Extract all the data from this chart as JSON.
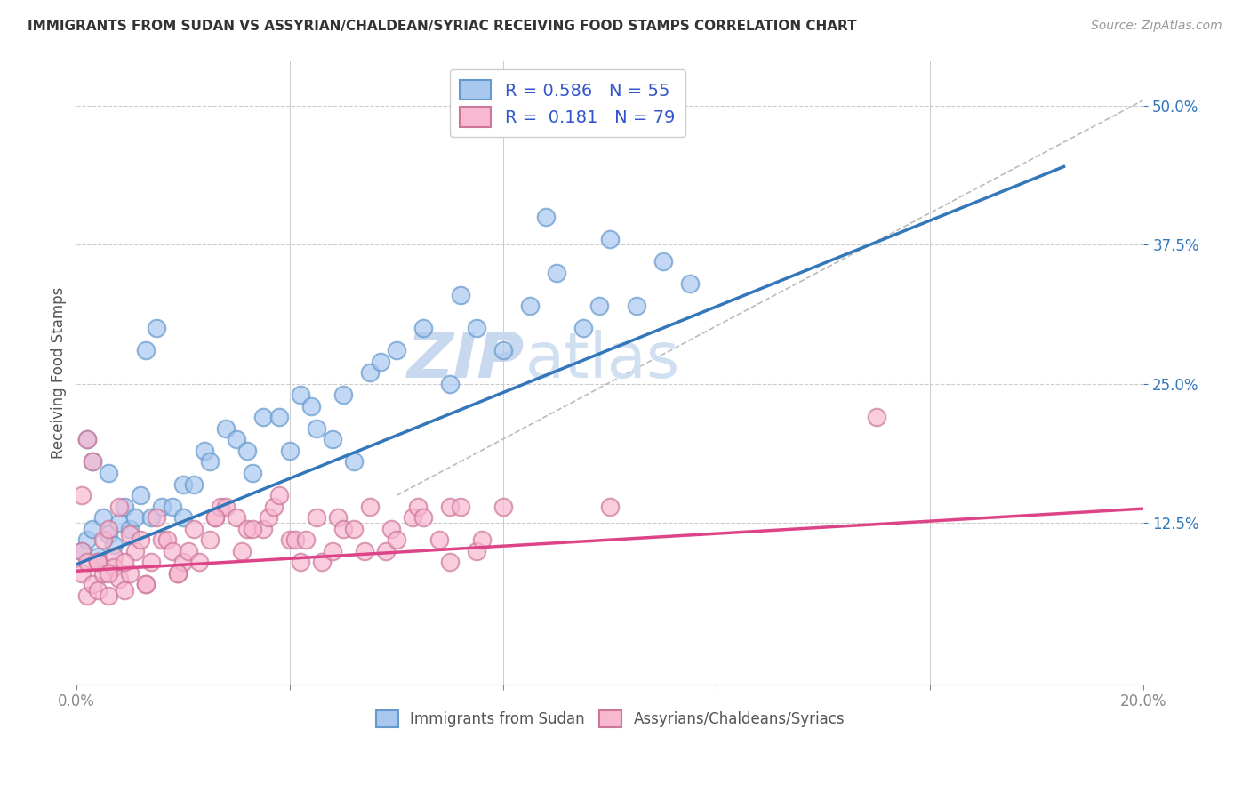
{
  "title": "IMMIGRANTS FROM SUDAN VS ASSYRIAN/CHALDEAN/SYRIAC RECEIVING FOOD STAMPS CORRELATION CHART",
  "source": "Source: ZipAtlas.com",
  "ylabel": "Receiving Food Stamps",
  "ytick_labels": [
    "12.5%",
    "25.0%",
    "37.5%",
    "50.0%"
  ],
  "ytick_values": [
    0.125,
    0.25,
    0.375,
    0.5
  ],
  "xmin": 0.0,
  "xmax": 0.2,
  "ymin": -0.02,
  "ymax": 0.54,
  "legend_entries": [
    {
      "label": "Immigrants from Sudan",
      "color": "#a8c4e8",
      "R": "0.586",
      "N": "55"
    },
    {
      "label": "Assyrians/Chaldeans/Syriacs",
      "color": "#f4a8c0",
      "R": "0.181",
      "N": "79"
    }
  ],
  "sudan_scatter_x": [
    0.001,
    0.002,
    0.003,
    0.003,
    0.004,
    0.005,
    0.006,
    0.007,
    0.008,
    0.009,
    0.01,
    0.011,
    0.012,
    0.013,
    0.014,
    0.015,
    0.016,
    0.018,
    0.02,
    0.022,
    0.024,
    0.025,
    0.028,
    0.03,
    0.032,
    0.033,
    0.035,
    0.038,
    0.04,
    0.042,
    0.044,
    0.045,
    0.048,
    0.05,
    0.052,
    0.055,
    0.057,
    0.06,
    0.065,
    0.07,
    0.072,
    0.075,
    0.08,
    0.085,
    0.088,
    0.09,
    0.095,
    0.098,
    0.1,
    0.105,
    0.11,
    0.002,
    0.006,
    0.02,
    0.115
  ],
  "sudan_scatter_y": [
    0.1,
    0.11,
    0.12,
    0.18,
    0.095,
    0.13,
    0.115,
    0.105,
    0.125,
    0.14,
    0.12,
    0.13,
    0.15,
    0.28,
    0.13,
    0.3,
    0.14,
    0.14,
    0.16,
    0.16,
    0.19,
    0.18,
    0.21,
    0.2,
    0.19,
    0.17,
    0.22,
    0.22,
    0.19,
    0.24,
    0.23,
    0.21,
    0.2,
    0.24,
    0.18,
    0.26,
    0.27,
    0.28,
    0.3,
    0.25,
    0.33,
    0.3,
    0.28,
    0.32,
    0.4,
    0.35,
    0.3,
    0.32,
    0.38,
    0.32,
    0.36,
    0.2,
    0.17,
    0.13,
    0.34
  ],
  "assyrian_scatter_x": [
    0.001,
    0.001,
    0.001,
    0.002,
    0.002,
    0.003,
    0.003,
    0.004,
    0.004,
    0.005,
    0.005,
    0.006,
    0.006,
    0.007,
    0.007,
    0.008,
    0.008,
    0.009,
    0.01,
    0.01,
    0.011,
    0.012,
    0.013,
    0.014,
    0.015,
    0.016,
    0.017,
    0.018,
    0.019,
    0.02,
    0.021,
    0.022,
    0.023,
    0.025,
    0.026,
    0.027,
    0.028,
    0.03,
    0.031,
    0.032,
    0.035,
    0.036,
    0.037,
    0.038,
    0.04,
    0.041,
    0.042,
    0.043,
    0.045,
    0.046,
    0.048,
    0.049,
    0.05,
    0.052,
    0.054,
    0.055,
    0.058,
    0.059,
    0.06,
    0.063,
    0.064,
    0.065,
    0.068,
    0.07,
    0.07,
    0.072,
    0.075,
    0.076,
    0.08,
    0.002,
    0.004,
    0.006,
    0.009,
    0.013,
    0.019,
    0.026,
    0.033,
    0.15,
    0.1
  ],
  "assyrian_scatter_y": [
    0.1,
    0.15,
    0.08,
    0.09,
    0.06,
    0.18,
    0.07,
    0.09,
    0.065,
    0.11,
    0.08,
    0.06,
    0.12,
    0.095,
    0.085,
    0.075,
    0.14,
    0.065,
    0.115,
    0.08,
    0.1,
    0.11,
    0.07,
    0.09,
    0.13,
    0.11,
    0.11,
    0.1,
    0.08,
    0.09,
    0.1,
    0.12,
    0.09,
    0.11,
    0.13,
    0.14,
    0.14,
    0.13,
    0.1,
    0.12,
    0.12,
    0.13,
    0.14,
    0.15,
    0.11,
    0.11,
    0.09,
    0.11,
    0.13,
    0.09,
    0.1,
    0.13,
    0.12,
    0.12,
    0.1,
    0.14,
    0.1,
    0.12,
    0.11,
    0.13,
    0.14,
    0.13,
    0.11,
    0.09,
    0.14,
    0.14,
    0.1,
    0.11,
    0.14,
    0.2,
    0.09,
    0.08,
    0.09,
    0.07,
    0.08,
    0.13,
    0.12,
    0.22,
    0.14
  ],
  "sudan_line_x": [
    0.0,
    0.185
  ],
  "sudan_line_y": [
    0.088,
    0.445
  ],
  "assyrian_line_x": [
    0.0,
    0.2
  ],
  "assyrian_line_y": [
    0.082,
    0.138
  ],
  "ref_line_x": [
    0.06,
    0.2
  ],
  "ref_line_y": [
    0.15,
    0.505
  ],
  "blue_scatter_color": "#a8c8f0",
  "blue_scatter_edge": "#6699cc",
  "pink_scatter_color": "#f8b8d0",
  "pink_scatter_edge": "#cc7799",
  "blue_line_color": "#3377bb",
  "pink_line_color": "#dd4488",
  "ref_line_color": "#bbbbbb",
  "legend_value_color": "#3355cc",
  "legend_label_color": "#333333",
  "background_color": "#ffffff",
  "grid_color": "#cccccc",
  "axis_color": "#888888",
  "watermark_zip_color": "#c8d8ee",
  "watermark_atlas_color": "#d0e0f0",
  "title_color": "#333333",
  "ylabel_color": "#555555",
  "yaxis_tick_color": "#3377bb"
}
